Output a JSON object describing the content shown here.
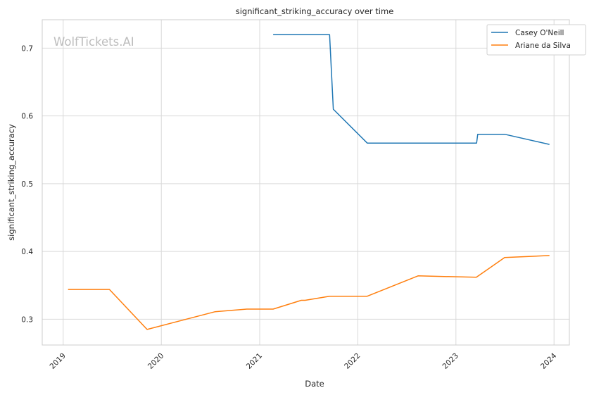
{
  "chart_data": {
    "type": "line",
    "title": "significant_striking_accuracy over time",
    "xlabel": "Date",
    "ylabel": "significant_striking_accuracy",
    "watermark": "WolfTickets.AI",
    "x_ticks": [
      "2019",
      "2020",
      "2021",
      "2022",
      "2023",
      "2024"
    ],
    "y_ticks": [
      "0.3",
      "0.4",
      "0.5",
      "0.6",
      "0.7"
    ],
    "ylim": [
      0.262,
      0.742
    ],
    "xlim": [
      "2018-10-15",
      "2024-02-27"
    ],
    "grid": true,
    "legend_position": "top-right",
    "series": [
      {
        "name": "Casey O'Neill",
        "color": "#1f77b4",
        "points": [
          [
            "2021-02-20",
            0.72
          ],
          [
            "2021-09-18",
            0.72
          ],
          [
            "2021-10-02",
            0.61
          ],
          [
            "2022-02-05",
            0.56
          ],
          [
            "2023-03-19",
            0.56
          ],
          [
            "2023-03-23",
            0.573
          ],
          [
            "2023-07-01",
            0.573
          ],
          [
            "2023-12-15",
            0.558
          ]
        ]
      },
      {
        "name": "Ariane da Silva",
        "color": "#ff7f0e",
        "points": [
          [
            "2019-01-19",
            0.344
          ],
          [
            "2019-06-22",
            0.344
          ],
          [
            "2019-11-09",
            0.285
          ],
          [
            "2020-07-18",
            0.311
          ],
          [
            "2020-11-14",
            0.315
          ],
          [
            "2021-02-20",
            0.315
          ],
          [
            "2021-06-05",
            0.328
          ],
          [
            "2021-06-19",
            0.328
          ],
          [
            "2021-09-18",
            0.334
          ],
          [
            "2022-02-05",
            0.334
          ],
          [
            "2022-08-13",
            0.364
          ],
          [
            "2023-03-18",
            0.362
          ],
          [
            "2023-07-01",
            0.391
          ],
          [
            "2023-12-15",
            0.394
          ]
        ]
      }
    ]
  }
}
